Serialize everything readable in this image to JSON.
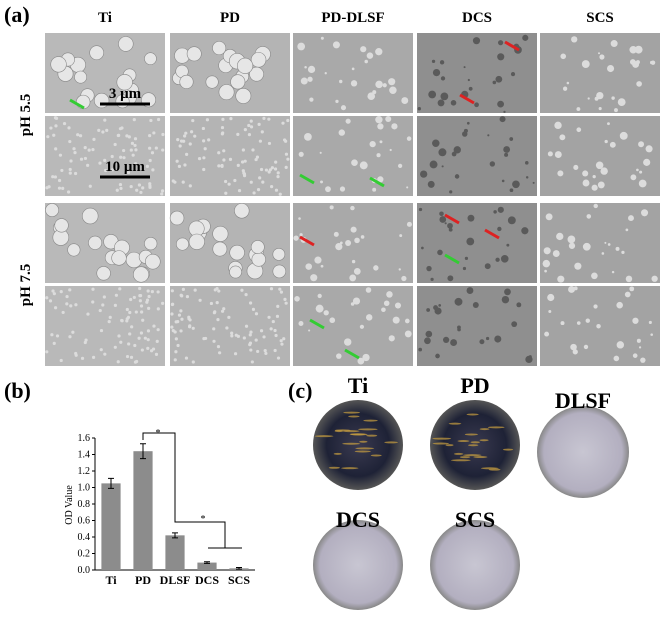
{
  "panel_a": {
    "label": "(a)",
    "columns": [
      "Ti",
      "PD",
      "PD-DLSF",
      "DCS",
      "SCS"
    ],
    "rows": [
      "pH 5.5",
      "pH 7.5"
    ],
    "scale_bars": [
      "3 μm",
      "10 μm"
    ]
  },
  "chart_data": {
    "type": "bar",
    "label": "(b)",
    "y_label": "OD Value",
    "categories": [
      "Ti",
      "PD",
      "DLSF",
      "DCS",
      "SCS"
    ],
    "values": [
      1.05,
      1.44,
      0.42,
      0.09,
      0.02
    ],
    "errors": [
      0.06,
      0.09,
      0.03,
      0.01,
      0.01
    ],
    "color": "#8c8c8c",
    "ylim": [
      0,
      1.6
    ],
    "yticks": [
      {
        "value": 0,
        "label": "0.0"
      },
      0.2,
      0.4,
      0.6,
      0.8,
      {
        "value": 1,
        "label": "1.0"
      },
      1.2,
      1.4,
      1.6
    ],
    "annotations": [
      "*",
      "*"
    ]
  },
  "panel_c": {
    "label": "(c)",
    "dishes": [
      "Ti",
      "PD",
      "DLSF",
      "DCS",
      "SCS"
    ]
  }
}
